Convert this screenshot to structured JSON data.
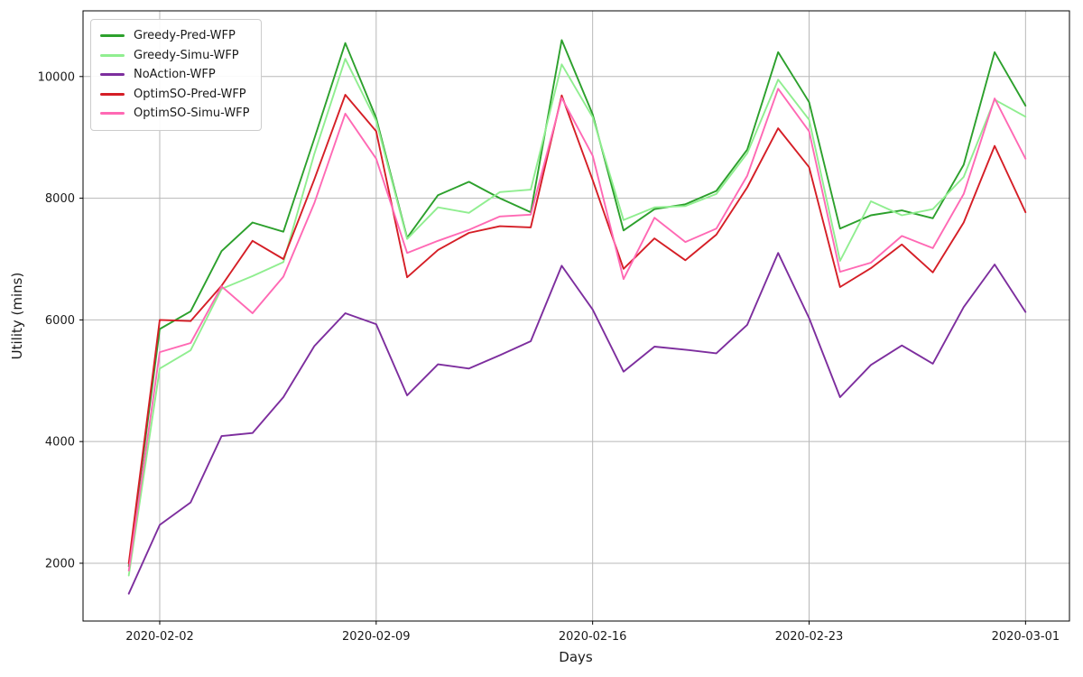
{
  "figure": {
    "background": "#ffffff",
    "frame_color": "#000000",
    "grid_color": "#b8b8b8",
    "text_color": "#1a1a1a"
  },
  "chart_data": {
    "type": "line",
    "title": "",
    "xlabel": "Days",
    "ylabel": "Utility (mins)",
    "grid": true,
    "legend_position": "upper-left",
    "x_tick_labels": [
      "2020-02-02",
      "2020-02-09",
      "2020-02-16",
      "2020-02-23",
      "2020-03-01"
    ],
    "x_tick_days": [
      1,
      8,
      15,
      22,
      29
    ],
    "y_ticks": [
      2000,
      4000,
      6000,
      8000,
      10000
    ],
    "xlim_days": [
      -1.48,
      30.42
    ],
    "ylim": [
      1050,
      11080
    ],
    "dates": [
      "2020-02-01",
      "2020-02-02",
      "2020-02-03",
      "2020-02-04",
      "2020-02-05",
      "2020-02-06",
      "2020-02-07",
      "2020-02-08",
      "2020-02-09",
      "2020-02-10",
      "2020-02-11",
      "2020-02-12",
      "2020-02-13",
      "2020-02-14",
      "2020-02-15",
      "2020-02-16",
      "2020-02-17",
      "2020-02-18",
      "2020-02-19",
      "2020-02-20",
      "2020-02-21",
      "2020-02-22",
      "2020-02-23",
      "2020-02-24",
      "2020-02-25",
      "2020-02-26",
      "2020-02-27",
      "2020-02-28",
      "2020-02-29",
      "2020-03-01"
    ],
    "series": [
      {
        "name": "Greedy-Pred-WFP",
        "color": "#2ca02c",
        "values": [
          1950,
          5850,
          6140,
          7130,
          7600,
          7450,
          8980,
          10550,
          9320,
          7350,
          8050,
          8270,
          8000,
          7770,
          10600,
          9380,
          7470,
          7820,
          7900,
          8120,
          8800,
          10400,
          9580,
          7500,
          7720,
          7800,
          7670,
          8550,
          10400,
          9520
        ]
      },
      {
        "name": "Greedy-Simu-WFP",
        "color": "#90ee90",
        "values": [
          1800,
          5200,
          5500,
          6510,
          6720,
          6950,
          8730,
          10290,
          9270,
          7330,
          7850,
          7760,
          8100,
          8140,
          10200,
          9330,
          7640,
          7850,
          7870,
          8070,
          8740,
          9950,
          9290,
          6970,
          7950,
          7720,
          7820,
          8350,
          9620,
          9340
        ]
      },
      {
        "name": "NoAction-WFP",
        "color": "#7d2e9e",
        "values": [
          1500,
          2630,
          3000,
          4090,
          4140,
          4730,
          5570,
          6110,
          5930,
          4760,
          5270,
          5200,
          5420,
          5650,
          6890,
          6170,
          5150,
          5560,
          5510,
          5450,
          5920,
          7100,
          6030,
          4730,
          5260,
          5580,
          5280,
          6210,
          6910,
          6130
        ]
      },
      {
        "name": "OptimSO-Pred-WFP",
        "color": "#d51e26",
        "values": [
          2000,
          6000,
          5980,
          6560,
          7300,
          7000,
          8310,
          9700,
          9100,
          6700,
          7150,
          7430,
          7540,
          7520,
          9690,
          8300,
          6840,
          7340,
          6980,
          7400,
          8180,
          9150,
          8510,
          6540,
          6850,
          7240,
          6780,
          7600,
          8860,
          7770
        ]
      },
      {
        "name": "OptimSO-Simu-WFP",
        "color": "#ff69b4",
        "values": [
          1880,
          5470,
          5620,
          6550,
          6110,
          6710,
          7920,
          9390,
          8650,
          7100,
          7300,
          7480,
          7700,
          7730,
          9650,
          8700,
          6670,
          7680,
          7280,
          7500,
          8370,
          9800,
          9100,
          6790,
          6940,
          7380,
          7180,
          8070,
          9640,
          8650
        ]
      }
    ]
  }
}
